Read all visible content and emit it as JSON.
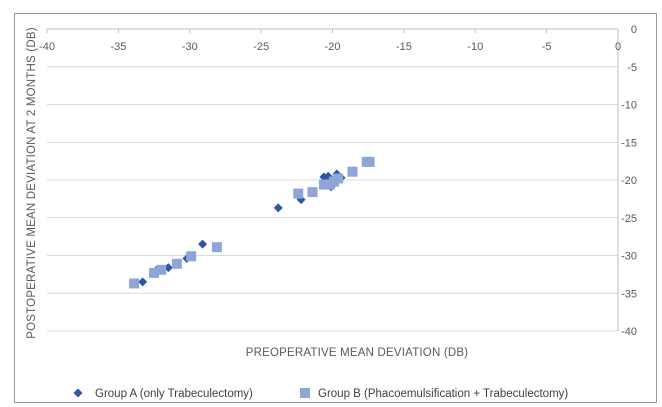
{
  "chart_data": {
    "type": "scatter",
    "title": "",
    "xlabel": "PREOPERATIVE MEAN DEVIATION (DB)",
    "ylabel": "POSTOPERATIVE MEAN DEVIATION AT 2 MONTHS (DB)",
    "xlim": [
      -40,
      0
    ],
    "ylim": [
      -40,
      0
    ],
    "x_ticks": [
      "-40",
      "-35",
      "-30",
      "-25",
      "-20",
      "-15",
      "-10",
      "-5",
      "0"
    ],
    "y_ticks": [
      "0",
      "-5",
      "-10",
      "-15",
      "-20",
      "-25",
      "-30",
      "-35",
      "-40"
    ],
    "grid": "horizontal",
    "legend_position": "bottom",
    "series": [
      {
        "name": "Group A (only Trabeculectomy)",
        "marker": "diamond",
        "color": "#2F55A4",
        "points": [
          [
            -33.3,
            -33.5
          ],
          [
            -32.3,
            -31.9
          ],
          [
            -31.5,
            -31.6
          ],
          [
            -30.2,
            -30.4
          ],
          [
            -29.1,
            -28.5
          ],
          [
            -23.8,
            -23.7
          ],
          [
            -22.2,
            -22.6
          ],
          [
            -20.6,
            -19.6
          ],
          [
            -20.3,
            -19.5
          ],
          [
            -20.1,
            -20.9
          ],
          [
            -19.7,
            -19.2
          ],
          [
            -19.4,
            -19.7
          ],
          [
            -18.6,
            -18.8
          ]
        ]
      },
      {
        "name": "Group B (Phacoemulsification + Trabeculectomy)",
        "marker": "square",
        "color": "#8FA5D6",
        "points": [
          [
            -33.9,
            -33.7
          ],
          [
            -32.5,
            -32.3
          ],
          [
            -32.0,
            -31.9
          ],
          [
            -30.9,
            -31.1
          ],
          [
            -29.9,
            -30.1
          ],
          [
            -28.1,
            -28.9
          ],
          [
            -22.4,
            -21.8
          ],
          [
            -21.4,
            -21.6
          ],
          [
            -20.6,
            -20.6
          ],
          [
            -20.2,
            -20.6
          ],
          [
            -19.9,
            -20.2
          ],
          [
            -19.6,
            -19.8
          ],
          [
            -18.6,
            -18.9
          ],
          [
            -17.6,
            -17.6
          ],
          [
            -17.4,
            -17.6
          ]
        ]
      }
    ]
  }
}
